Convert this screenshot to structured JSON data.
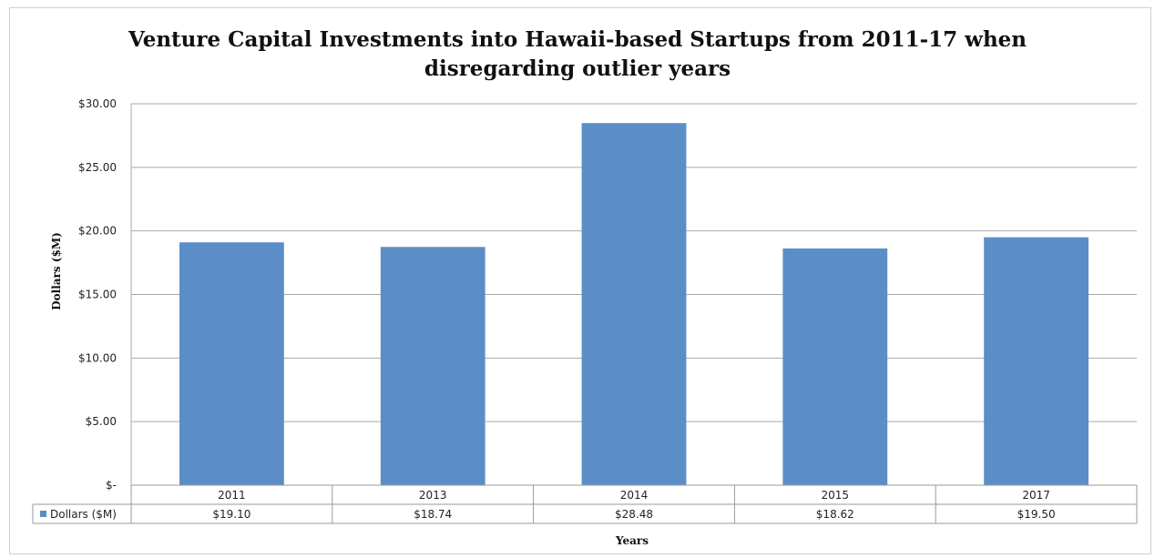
{
  "chart_data": {
    "type": "bar",
    "title_lines": [
      "Venture Capital Investments into Hawaii-based Startups from 2011-17 when",
      "disregarding outlier years"
    ],
    "xlabel": "Years",
    "ylabel": "Dollars ($M)",
    "categories": [
      "2011",
      "2013",
      "2014",
      "2015",
      "2017"
    ],
    "series": [
      {
        "name": "Dollars ($M)",
        "values": [
          19.1,
          18.74,
          28.48,
          18.62,
          19.5
        ],
        "color": "#5b8ec6"
      }
    ],
    "ylim": [
      0,
      30
    ],
    "yticks": [
      0,
      5,
      10,
      15,
      20,
      25,
      30
    ],
    "ytick_labels": [
      "$-",
      "$5.00",
      "$10.00",
      "$15.00",
      "$20.00",
      "$25.00",
      "$30.00"
    ],
    "data_table": {
      "row_label": "Dollars ($M)",
      "cells": [
        "$19.10",
        "$18.74",
        "$28.48",
        "$18.62",
        "$19.50"
      ]
    },
    "grid": true,
    "legend": "data-table"
  }
}
